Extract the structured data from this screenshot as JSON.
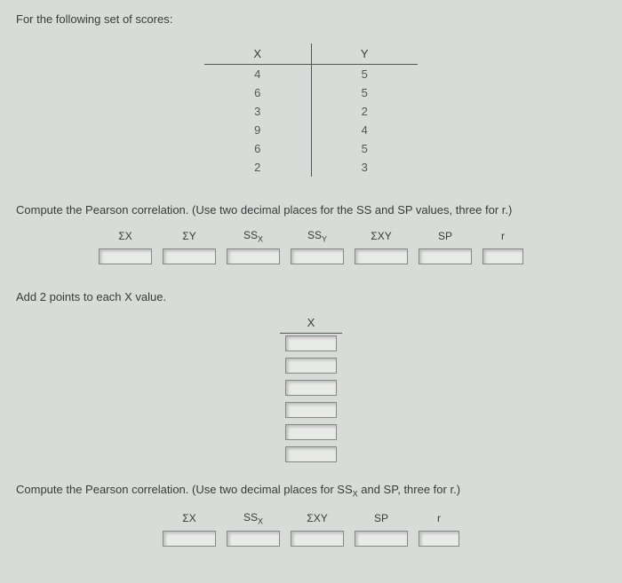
{
  "prompt1": "For the following set of scores:",
  "xy": {
    "headX": "X",
    "headY": "Y",
    "rows": [
      {
        "x": "4",
        "y": "5"
      },
      {
        "x": "6",
        "y": "5"
      },
      {
        "x": "3",
        "y": "2"
      },
      {
        "x": "9",
        "y": "4"
      },
      {
        "x": "6",
        "y": "5"
      },
      {
        "x": "2",
        "y": "3"
      }
    ]
  },
  "instr1": "Compute the Pearson correlation. (Use two decimal places for the SS and SP values, three for r.)",
  "calc1": {
    "sigmaX": "ΣX",
    "sigmaY": "ΣY",
    "ssx": "SS",
    "ssx_sub": "X",
    "ssy": "SS",
    "ssy_sub": "Y",
    "sigmaXY": "ΣXY",
    "sp": "SP",
    "r": "r"
  },
  "prompt2": "Add 2 points to each X value.",
  "single": {
    "head": "X",
    "rowCount": 6
  },
  "instr2_a": "Compute the Pearson correlation. (Use two decimal places for SS",
  "instr2_sub": "X",
  "instr2_b": " and SP, three for r.)",
  "calc2": {
    "sigmaX": "ΣX",
    "ssx": "SS",
    "ssx_sub": "X",
    "sigmaXY": "ΣXY",
    "sp": "SP",
    "r": "r"
  }
}
